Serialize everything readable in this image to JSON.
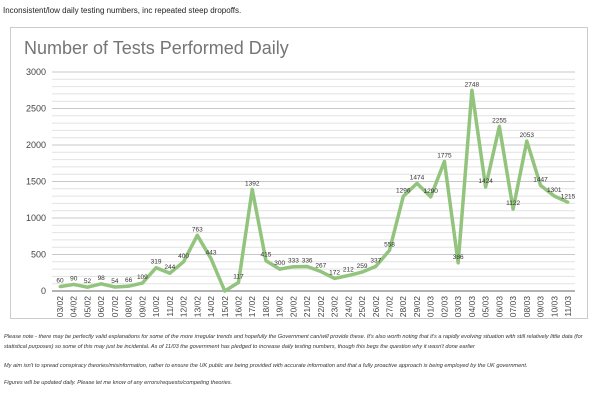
{
  "header": {
    "text": "Inconsistent/low daily testing numbers, inc repeated steep dropoffs."
  },
  "chart_data": {
    "type": "line",
    "title": "Number of Tests Performed Daily",
    "xlabel": "",
    "ylabel": "",
    "ylim": [
      0,
      3000
    ],
    "yticks": [
      0,
      500,
      1000,
      1500,
      2000,
      2500,
      3000
    ],
    "grid": true,
    "line_color": "#93c47d",
    "categories": [
      "03/02",
      "04/02",
      "05/02",
      "06/02",
      "07/02",
      "08/02",
      "09/02",
      "10/02",
      "11/02",
      "12/02",
      "13/02",
      "14/02",
      "15/02",
      "16/02",
      "17/02",
      "18/02",
      "19/02",
      "20/02",
      "21/02",
      "22/02",
      "23/02",
      "24/02",
      "25/02",
      "26/02",
      "27/02",
      "28/02",
      "29/02",
      "01/03",
      "02/03",
      "03/03",
      "04/03",
      "05/03",
      "06/03",
      "07/03",
      "08/03",
      "09/03",
      "10/03",
      "11/03"
    ],
    "values": [
      60,
      90,
      52,
      98,
      54,
      66,
      109,
      319,
      244,
      400,
      763,
      443,
      0,
      117,
      1392,
      415,
      300,
      333,
      336,
      267,
      172,
      212,
      259,
      337,
      558,
      1296,
      1474,
      1290,
      1775,
      386,
      2748,
      1424,
      2255,
      1122,
      2053,
      1447,
      1301,
      1215
    ]
  },
  "notes": [
    "Please note - there may be perfectly valid explanations for some of the more irregular trends and hopefully the Government can/will provide these.  It's also worth noting that it's a rapidly evolving situation with still relatively little data (for statistical purposes) so some of this may just be incidental.  As of 11/03 the government has pledged to increase daily testing numbers, though this begs the question why it wasn't done earlier",
    "My aim isn't to spread conspiracy theories/misinformation, rather to ensure the UK public are being provided with accurate information and that a fully proactive approach is being employed by the UK government.",
    "Figures will be updated daily.  Please let me know of any errors/requests/competing theories."
  ]
}
